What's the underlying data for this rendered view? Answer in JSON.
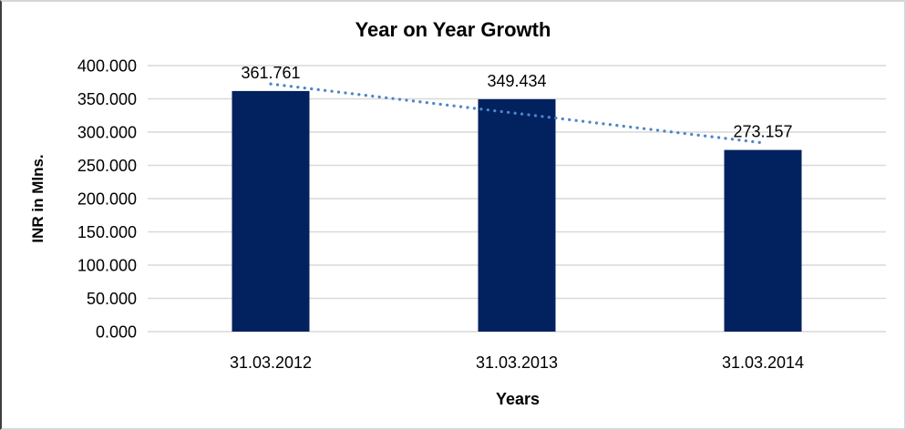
{
  "chart_data": {
    "type": "bar",
    "title": "Year on Year Growth",
    "xlabel": "Years",
    "ylabel": "INR in Mlns.",
    "categories": [
      "31.03.2012",
      "31.03.2013",
      "31.03.2014"
    ],
    "series": [
      {
        "name": "INR in Mlns.",
        "values": [
          361.761,
          349.434,
          273.157
        ],
        "data_labels": [
          "361.761",
          "349.434",
          "273.157"
        ]
      }
    ],
    "ylim": [
      0,
      400
    ],
    "ytick_step": 50,
    "ytick_decimals": 3,
    "ytick_labels": [
      "0.000",
      "50.000",
      "100.000",
      "150.000",
      "200.000",
      "250.000",
      "300.000",
      "350.000",
      "400.000"
    ],
    "grid": "horizontal-on",
    "legend": "none",
    "trendline": {
      "type": "linear",
      "style": "dotted"
    },
    "colors": {
      "bar": "#02215F",
      "trendline": "#4E86C8",
      "gridline": "#D9D9D9",
      "text": "#000000",
      "background": "#FFFFFF"
    }
  }
}
